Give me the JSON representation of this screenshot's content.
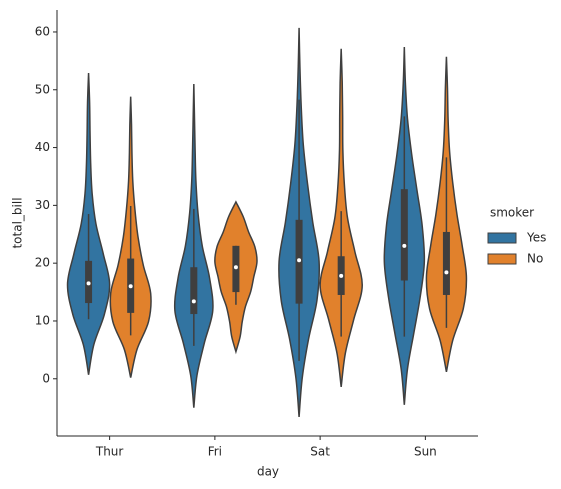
{
  "chart_data": {
    "type": "violin",
    "xlabel": "day",
    "ylabel": "total_bill",
    "categories": [
      "Thur",
      "Fri",
      "Sat",
      "Sun"
    ],
    "ylim": [
      -9.9,
      63.8
    ],
    "yticks": [
      0,
      10,
      20,
      30,
      40,
      50,
      60
    ],
    "legend_title": "smoker",
    "legend": "right",
    "series": [
      {
        "name": "Yes",
        "color": "#3274a1",
        "violins": [
          {
            "min": 0.7,
            "max": 52.9,
            "q1": 13.1,
            "median": 16.5,
            "q3": 20.4,
            "whisker_low": 10.3,
            "whisker_high": 28.5,
            "density": [
              0,
              0.25,
              0.75,
              1,
              0.7,
              0.35,
              0.17,
              0.1,
              0.07,
              0.05,
              0
            ]
          },
          {
            "min": -5,
            "max": 51,
            "q1": 11.2,
            "median": 13.4,
            "q3": 19.3,
            "whisker_low": 5.7,
            "whisker_high": 29.4,
            "density": [
              0,
              0.15,
              0.5,
              0.9,
              0.75,
              0.4,
              0.2,
              0.1,
              0.06,
              0.03,
              0
            ]
          },
          {
            "min": -6.6,
            "max": 60.7,
            "q1": 13,
            "median": 20.5,
            "q3": 27.5,
            "whisker_low": 3.1,
            "whisker_high": 48.3,
            "density": [
              0,
              0.15,
              0.45,
              0.85,
              0.95,
              0.65,
              0.4,
              0.2,
              0.1,
              0.04,
              0
            ]
          },
          {
            "min": -4.5,
            "max": 57.4,
            "q1": 17,
            "median": 23,
            "q3": 32.8,
            "whisker_low": 7.3,
            "whisker_high": 45.4,
            "density": [
              0,
              0.15,
              0.45,
              0.75,
              0.95,
              0.85,
              0.6,
              0.35,
              0.15,
              0.05,
              0
            ]
          }
        ]
      },
      {
        "name": "No",
        "color": "#e1812c",
        "violins": [
          {
            "min": 0.2,
            "max": 48.8,
            "q1": 11.4,
            "median": 16,
            "q3": 20.8,
            "whisker_low": 7.5,
            "whisker_high": 29.9,
            "density": [
              0,
              0.3,
              0.85,
              0.95,
              0.6,
              0.35,
              0.2,
              0.1,
              0.06,
              0.04,
              0
            ]
          },
          {
            "min": 4.7,
            "max": 30.6,
            "q1": 15,
            "median": 19.3,
            "q3": 23,
            "whisker_low": 12.8,
            "whisker_high": 23,
            "density": [
              0,
              0.2,
              0.3,
              0.45,
              0.7,
              0.85,
              1,
              0.9,
              0.6,
              0.35,
              0
            ]
          },
          {
            "min": -1.4,
            "max": 57.1,
            "q1": 14.5,
            "median": 17.8,
            "q3": 21.2,
            "whisker_low": 7.3,
            "whisker_high": 29,
            "density": [
              0,
              0.2,
              0.6,
              1,
              0.65,
              0.3,
              0.15,
              0.08,
              0.07,
              0.05,
              0
            ]
          },
          {
            "min": 1.2,
            "max": 55.7,
            "q1": 14.5,
            "median": 18.4,
            "q3": 25.4,
            "whisker_low": 8.8,
            "whisker_high": 38.3,
            "density": [
              0,
              0.3,
              0.8,
              0.95,
              0.75,
              0.5,
              0.3,
              0.15,
              0.08,
              0.05,
              0
            ]
          }
        ]
      }
    ]
  }
}
